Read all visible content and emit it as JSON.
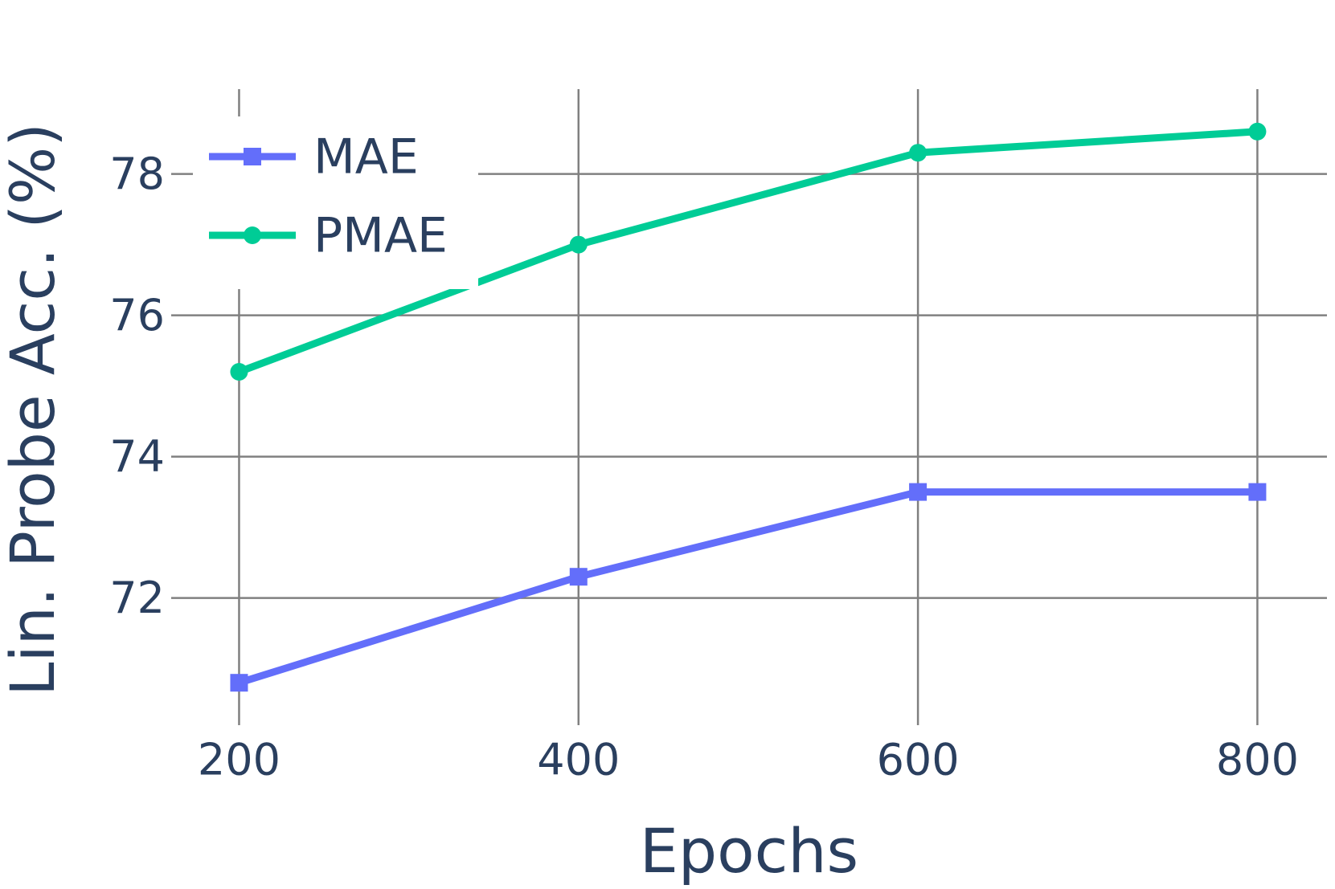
{
  "chart_data": {
    "type": "line",
    "x_label": "Epochs",
    "y_label": "Lin. Probe Acc. (%)",
    "x": [
      200,
      400,
      600,
      800
    ],
    "series": [
      {
        "name": "MAE",
        "color": "#636efa",
        "marker": "square",
        "values": [
          70.8,
          72.3,
          73.5,
          73.5
        ]
      },
      {
        "name": "PMAE",
        "color": "#00cc96",
        "marker": "circle",
        "values": [
          75.2,
          77.0,
          78.3,
          78.6
        ]
      }
    ],
    "xlim": [
      160,
      841
    ],
    "ylim": [
      70.2,
      79.2
    ],
    "xticks": [
      200,
      400,
      600,
      800
    ],
    "yticks": [
      72,
      74,
      76,
      78
    ],
    "grid": true,
    "legend": "top-left"
  }
}
